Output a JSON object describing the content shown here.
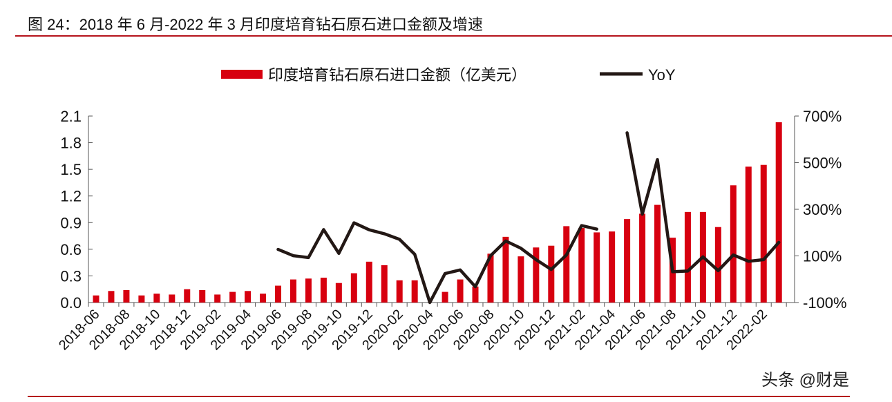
{
  "title": "图 24：2018 年 6 月-2022 年 3 月印度培育钻石原石进口金额及增速",
  "watermark": "头条 @财是",
  "colors": {
    "bar": "#d7000f",
    "line": "#231815",
    "rule": "#b5121b"
  },
  "chart_data": {
    "type": "bar+line",
    "title": "",
    "legend_position": "top",
    "grid": false,
    "categories": [
      "2018-06",
      "2018-07",
      "2018-08",
      "2018-09",
      "2018-10",
      "2018-11",
      "2018-12",
      "2019-01",
      "2019-02",
      "2019-03",
      "2019-04",
      "2019-05",
      "2019-06",
      "2019-07",
      "2019-08",
      "2019-09",
      "2019-10",
      "2019-11",
      "2019-12",
      "2020-01",
      "2020-02",
      "2020-03",
      "2020-04",
      "2020-05",
      "2020-06",
      "2020-07",
      "2020-08",
      "2020-09",
      "2020-10",
      "2020-11",
      "2020-12",
      "2021-01",
      "2021-02",
      "2021-03",
      "2021-04",
      "2021-05",
      "2021-06",
      "2021-07",
      "2021-08",
      "2021-09",
      "2021-10",
      "2021-11",
      "2021-12",
      "2022-01",
      "2022-02",
      "2022-03"
    ],
    "x_tick_labels": [
      "2018-06",
      "2018-08",
      "2018-10",
      "2018-12",
      "2019-02",
      "2019-04",
      "2019-06",
      "2019-08",
      "2019-10",
      "2019-12",
      "2020-02",
      "2020-04",
      "2020-06",
      "2020-08",
      "2020-10",
      "2020-12",
      "2021-02",
      "2021-04",
      "2021-06",
      "2021-08",
      "2021-10",
      "2021-12",
      "2022-02"
    ],
    "left_axis": {
      "ylim": [
        0,
        2.1
      ],
      "ticks": [
        "0.0",
        "0.3",
        "0.6",
        "0.9",
        "1.2",
        "1.5",
        "1.8",
        "2.1"
      ]
    },
    "right_axis": {
      "ylim": [
        -100,
        700
      ],
      "ticks": [
        "-100%",
        "100%",
        "300%",
        "500%",
        "700%"
      ]
    },
    "series": [
      {
        "name": "印度培育钻石原石进口金额（亿美元）",
        "type": "bar",
        "axis": "left",
        "values": [
          0.08,
          0.13,
          0.14,
          0.08,
          0.1,
          0.09,
          0.15,
          0.14,
          0.09,
          0.12,
          0.13,
          0.1,
          0.19,
          0.26,
          0.27,
          0.28,
          0.22,
          0.33,
          0.46,
          0.42,
          0.25,
          0.25,
          0.0,
          0.12,
          0.26,
          0.18,
          0.55,
          0.74,
          0.52,
          0.62,
          0.64,
          0.86,
          0.84,
          0.79,
          0.8,
          0.94,
          1.0,
          1.1,
          0.73,
          1.02,
          1.02,
          0.85,
          1.32,
          1.53,
          1.55,
          2.03
        ]
      },
      {
        "name": "YoY",
        "type": "line",
        "axis": "right",
        "unit": "%",
        "values": [
          null,
          null,
          null,
          null,
          null,
          null,
          null,
          null,
          null,
          null,
          null,
          null,
          128,
          101,
          93,
          213,
          111,
          242,
          212,
          195,
          171,
          107,
          -100,
          24,
          40,
          -32,
          101,
          164,
          133,
          84,
          42,
          104,
          230,
          215,
          null,
          628,
          279,
          513,
          32,
          35,
          96,
          37,
          104,
          77,
          84,
          158
        ]
      }
    ]
  }
}
